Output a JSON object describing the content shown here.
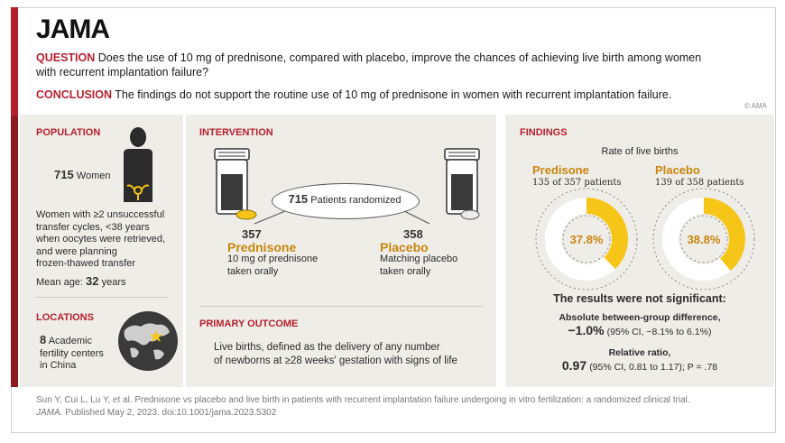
{
  "brand": "JAMA",
  "question": {
    "label": "QUESTION",
    "text_line1": "Does the use of 10 mg of prednisone, compared with placebo, improve the chances of achieving live birth among women",
    "text_line2": "with recurrent implantation failure?"
  },
  "conclusion": {
    "label": "CONCLUSION",
    "text": "The findings do not support the routine use of 10 mg of prednisone in women with recurrent implantation failure."
  },
  "copyright": "© AMA",
  "population": {
    "title": "POPULATION",
    "count": "715",
    "count_label": "Women",
    "criteria": [
      "Women with ≥2 unsuccessful",
      "transfer cycles, <38 years",
      "when oocytes were retrieved,",
      "and were planning",
      "frozen-thawed transfer"
    ],
    "mean_age_label": "Mean age:",
    "mean_age_value": "32",
    "mean_age_unit": "years"
  },
  "locations": {
    "title": "LOCATIONS",
    "count": "8",
    "line1": "Academic",
    "line2": "fertility centers",
    "line3": "in China"
  },
  "intervention": {
    "title": "INTERVENTION",
    "randomized_count": "715",
    "randomized_label": "Patients randomized",
    "arm1": {
      "count": "357",
      "name": "Prednisone",
      "desc1": "10 mg of prednisone",
      "desc2": "taken orally"
    },
    "arm2": {
      "count": "358",
      "name": "Placebo",
      "desc1": "Matching placebo",
      "desc2": "taken orally"
    }
  },
  "primary_outcome": {
    "title": "PRIMARY OUTCOME",
    "line1": "Live births, defined as the delivery of any number",
    "line2": "of newborns at ≥28 weeks' gestation with signs of life"
  },
  "findings": {
    "title": "FINDINGS",
    "subtitle": "Rate of live births",
    "not_significant": "The results were not significant:",
    "abs_label": "Absolute between-group difference,",
    "abs_value": "−1.0%",
    "abs_ci": "(95% CI, −8.1% to 6.1%)",
    "rel_label": "Relative ratio,",
    "rel_value": "0.97",
    "rel_ci": "(95% CI, 0.81 to 1.17); P = .78"
  },
  "chart_data": {
    "type": "pie",
    "title": "Rate of live births",
    "series": [
      {
        "name": "Predisone",
        "detail": "135 of 357 patients",
        "value": 37.8,
        "label": "37.8%"
      },
      {
        "name": "Placebo",
        "detail": "139 of 358 patients",
        "value": 38.8,
        "label": "38.8%"
      }
    ],
    "colors": {
      "fill": "#f5c518",
      "empty": "#ffffff",
      "guide": "#8a8a8a"
    }
  },
  "citation": {
    "line1": "Sun Y, Cui L, Lu Y, et al. Prednisone vs placebo and live birth in patients with recurrent implantation failure undergoing in vitro fertilization: a randomized clinical trial.",
    "journal": "JAMA.",
    "line2_rest": "Published May 2, 2023. doi:10.1001/jama.2023.5302"
  },
  "colors": {
    "accent_red": "#b5202e",
    "gold": "#c8860c",
    "panel_bg": "#efede8"
  }
}
